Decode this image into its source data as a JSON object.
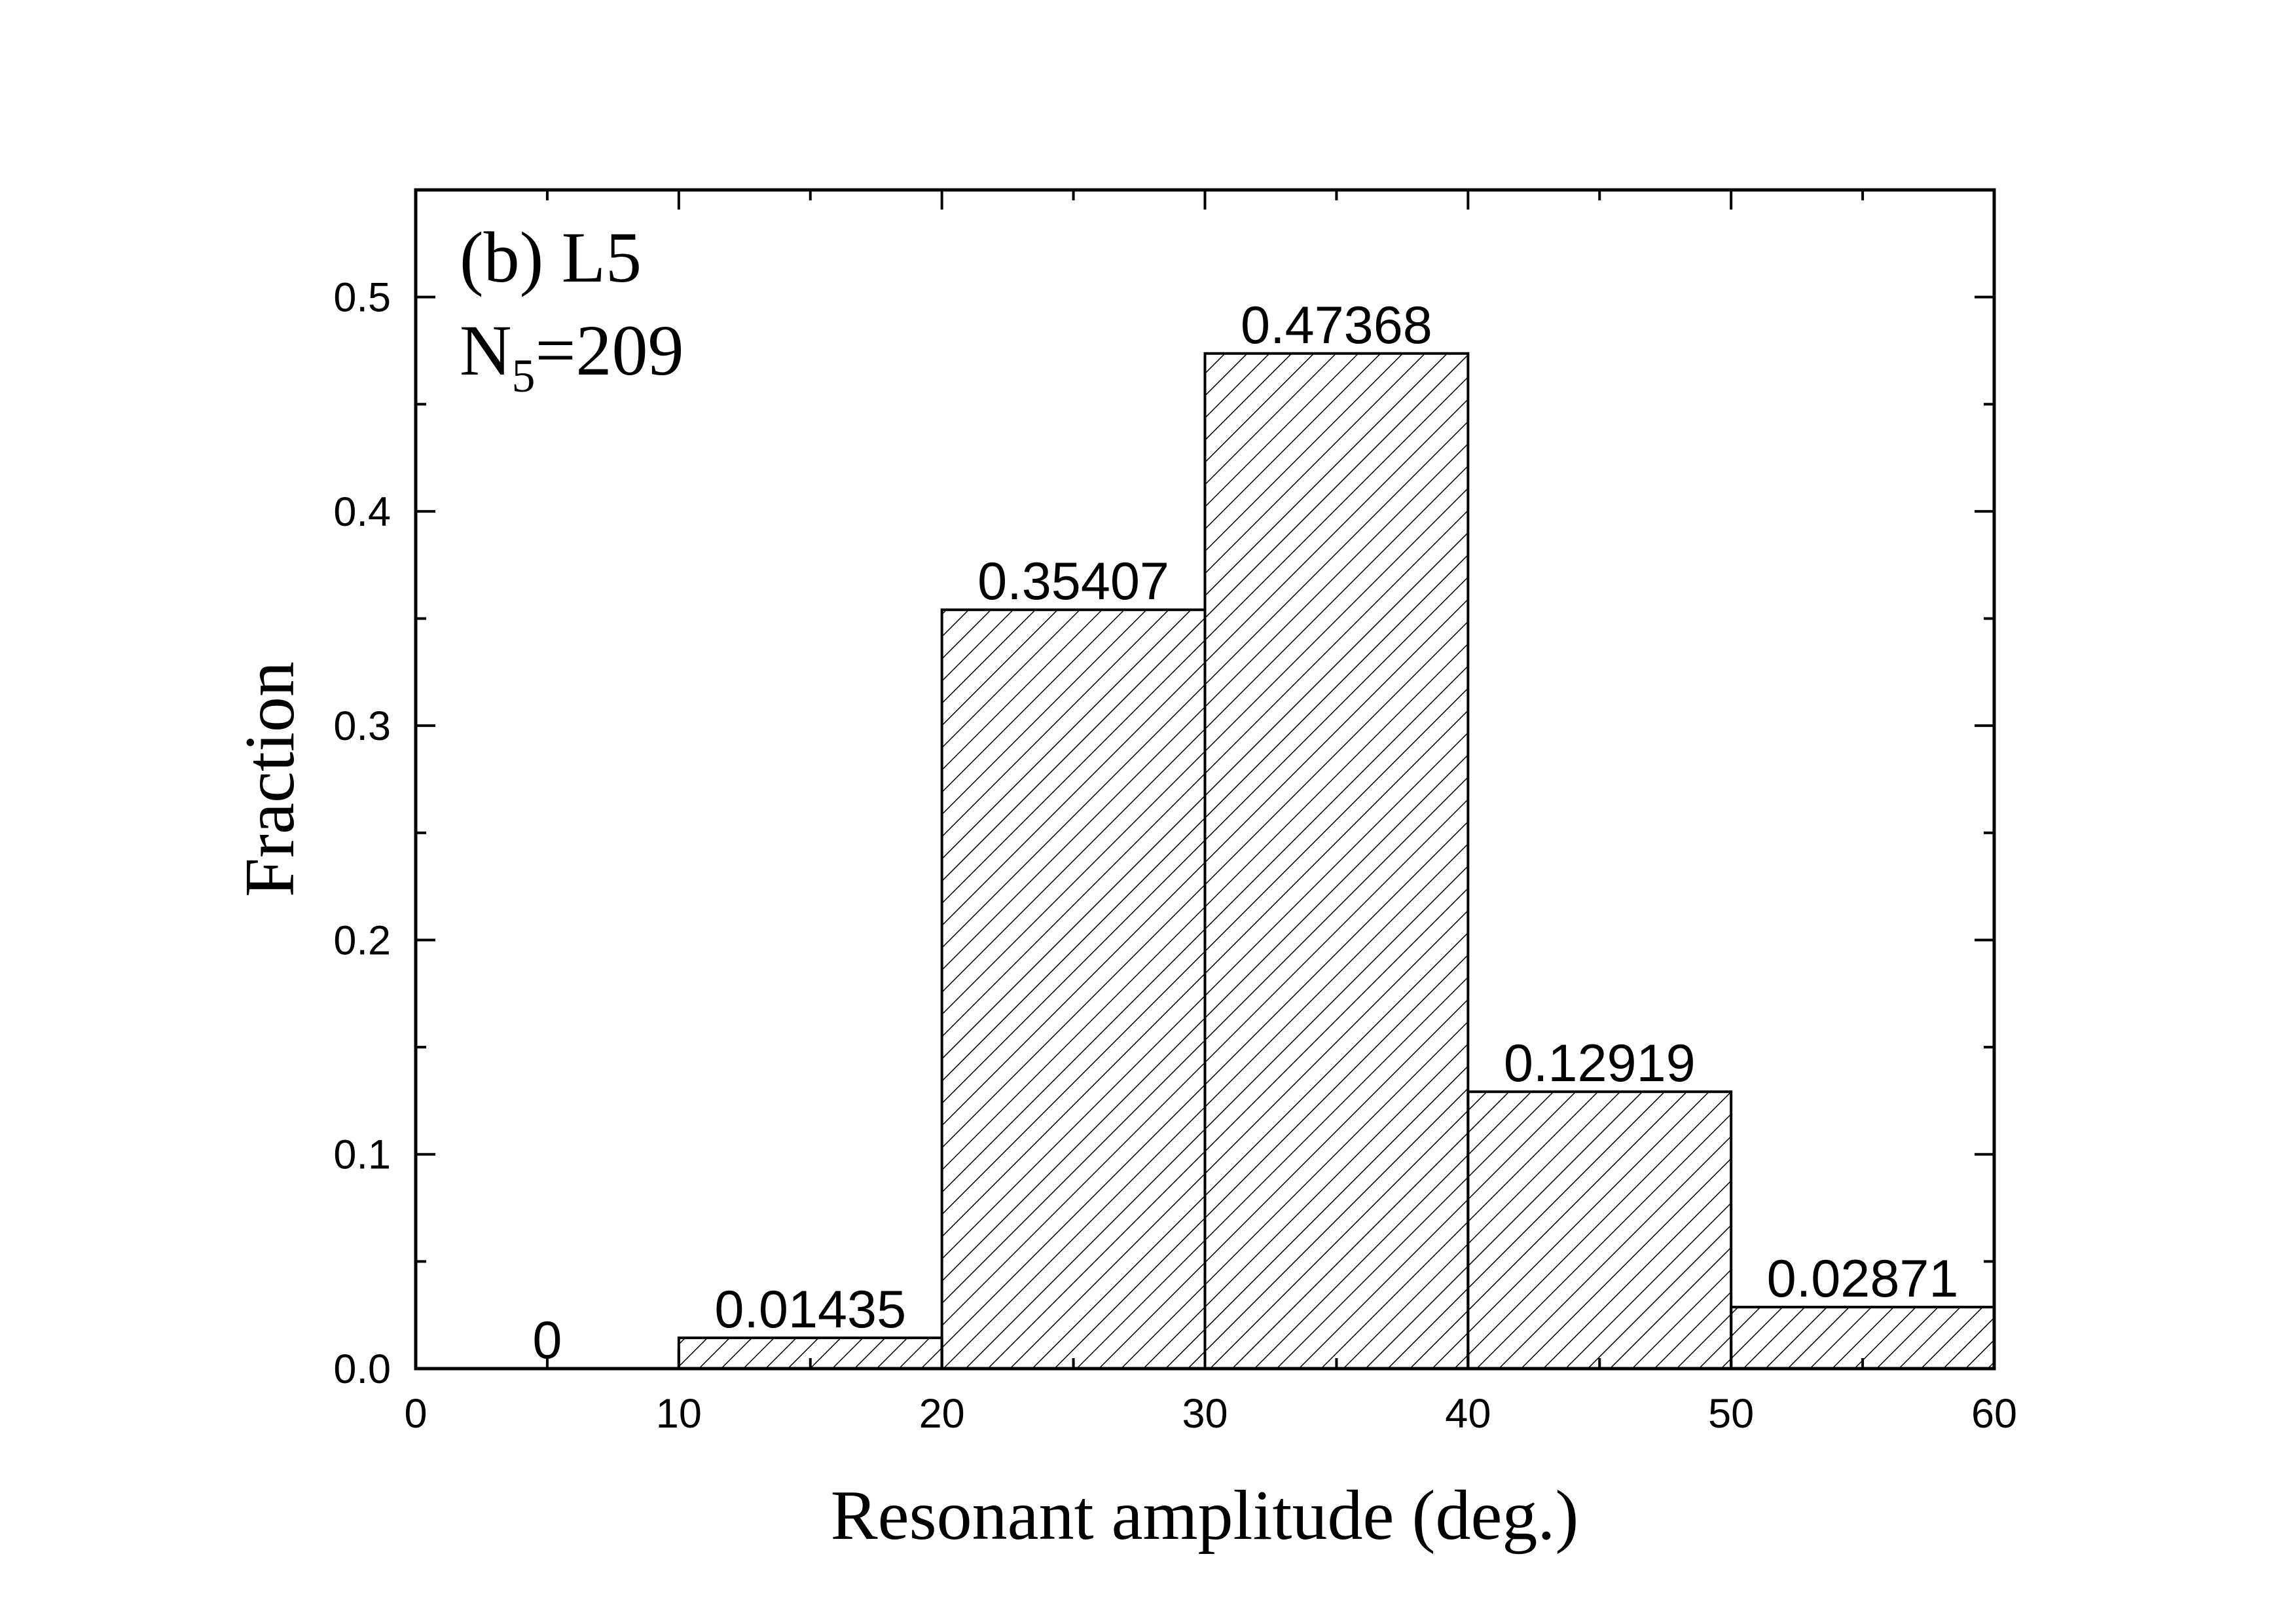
{
  "chart_data": {
    "type": "bar",
    "bins": [
      {
        "from": 0,
        "to": 10,
        "value": 0,
        "label": "0"
      },
      {
        "from": 10,
        "to": 20,
        "value": 0.01435,
        "label": "0.01435"
      },
      {
        "from": 20,
        "to": 30,
        "value": 0.35407,
        "label": "0.35407"
      },
      {
        "from": 30,
        "to": 40,
        "value": 0.47368,
        "label": "0.47368"
      },
      {
        "from": 40,
        "to": 50,
        "value": 0.12919,
        "label": "0.12919"
      },
      {
        "from": 50,
        "to": 60,
        "value": 0.02871,
        "label": "0.02871"
      }
    ],
    "xlabel": "Resonant amplitude (deg.)",
    "ylabel": "Fraction",
    "xlim": [
      0,
      60
    ],
    "ylim": [
      0,
      0.55
    ],
    "x_ticks": [
      "0",
      "10",
      "20",
      "30",
      "40",
      "50",
      "60"
    ],
    "y_ticks": [
      "0.0",
      "0.1",
      "0.2",
      "0.3",
      "0.4",
      "0.5"
    ],
    "annotation": {
      "line1": "(b) L5",
      "line2_main": "N",
      "line2_sub": "5",
      "line2_rest": "=209"
    },
    "fill_pattern": "diagonal-hatch",
    "grid": false,
    "colors": {
      "bar_stroke": "#000000",
      "hatch": "#000000",
      "background": "#ffffff"
    }
  }
}
